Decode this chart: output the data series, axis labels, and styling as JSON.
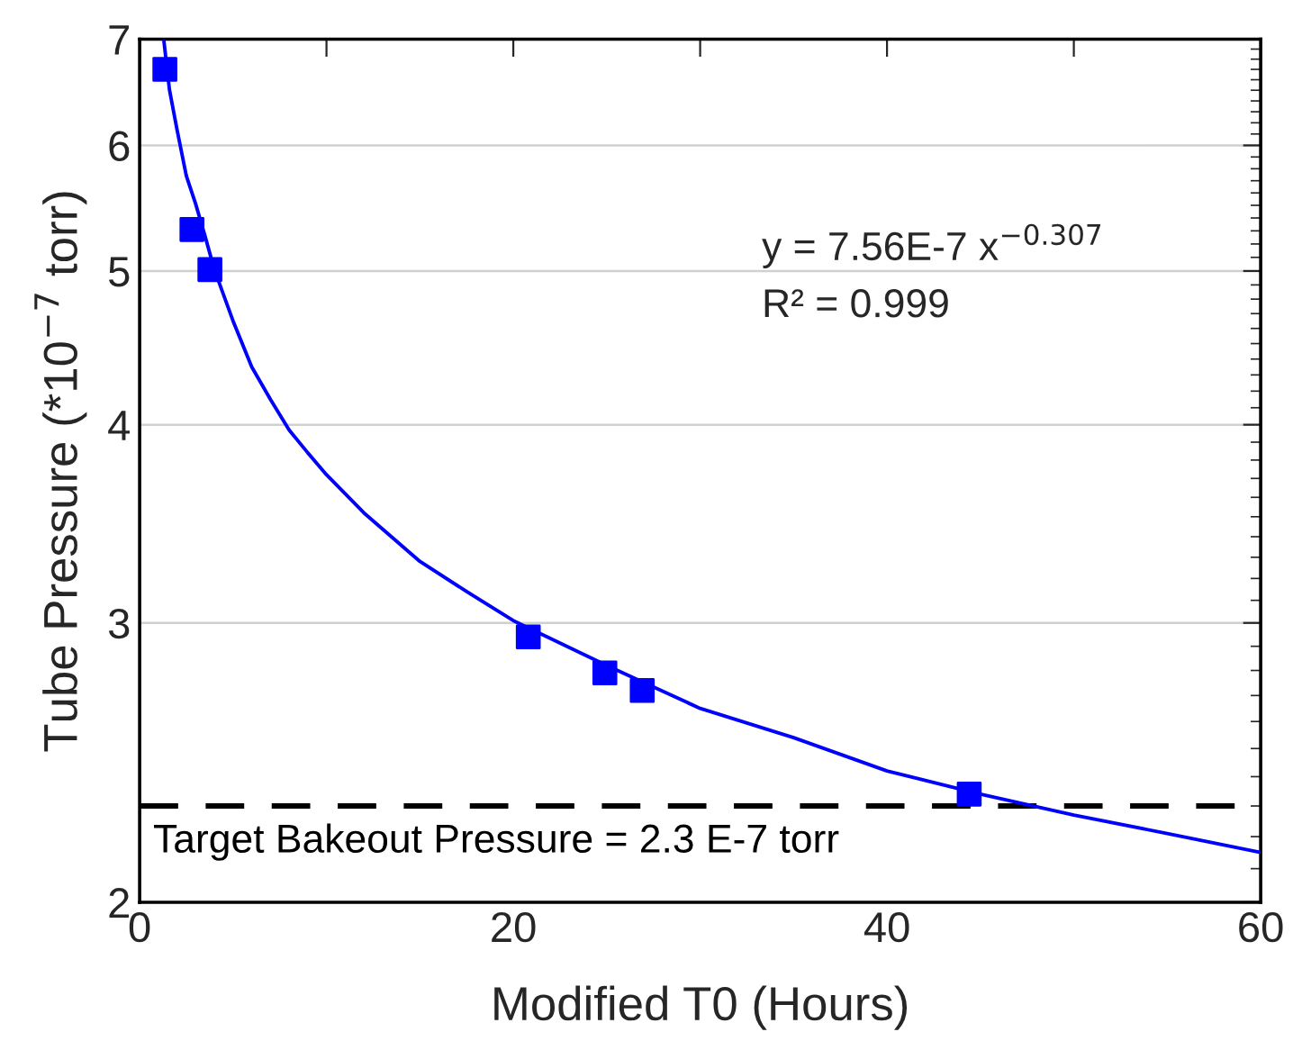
{
  "chart_data": {
    "type": "scatter",
    "xlabel": "Modified T0 (Hours)",
    "ylabel": "Tube Pressure (*10$^{−7}$ torr)",
    "log": "y",
    "xlim": [
      0,
      60
    ],
    "ylim": [
      2,
      7
    ],
    "xticks": [
      0,
      {
        "value": 10,
        "label": null
      },
      20,
      {
        "value": 30,
        "label": null
      },
      40,
      {
        "value": 50,
        "label": null
      },
      60
    ],
    "yticks": [
      2,
      3,
      4,
      5,
      6,
      7
    ],
    "grid": "y",
    "legend": false,
    "series": [
      {
        "marker": "square",
        "color": "#0000ff",
        "x": [
          1.35,
          2.8,
          3.76,
          20.8,
          24.9,
          26.9,
          44.4
        ],
        "values": [
          6.7,
          5.31,
          5.01,
          2.94,
          2.79,
          2.72,
          2.34
        ]
      },
      {
        "type": "line",
        "marker": "none",
        "line_style": "solid",
        "color": "#0000ff",
        "x": [
          1.3,
          1.6,
          2,
          2.5,
          3,
          3.5,
          4,
          5,
          6,
          7,
          8,
          9,
          10,
          12,
          15,
          17.5,
          20,
          25,
          30,
          35,
          40,
          45,
          50,
          55,
          60
        ],
        "values": [
          6.98,
          6.5,
          6.14,
          5.74,
          5.51,
          5.26,
          5.01,
          4.65,
          4.35,
          4.15,
          3.97,
          3.84,
          3.72,
          3.52,
          3.28,
          3.14,
          3.01,
          2.82,
          2.65,
          2.54,
          2.42,
          2.34,
          2.27,
          2.21,
          2.15
        ]
      }
    ],
    "ref_lines": [
      {
        "axis": "y",
        "value": 2.3,
        "label": "Target Bakeout Pressure = 2.3 E-7 torr",
        "color": "#000000",
        "line_style": "dashed"
      }
    ],
    "annotations": [
      "y = 7.56E-7 x$^{−0.307}$",
      "R² = 0.999"
    ]
  }
}
